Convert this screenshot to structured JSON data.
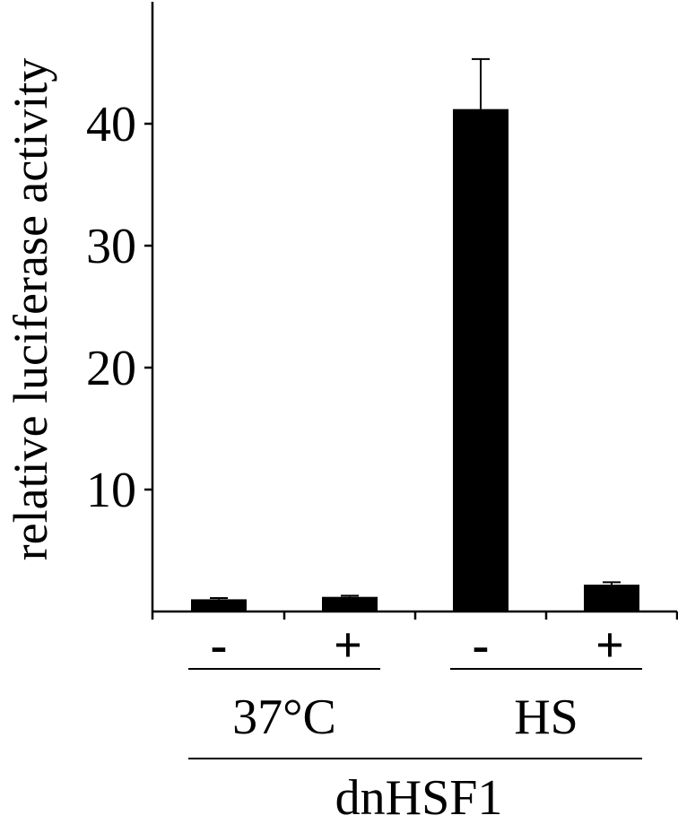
{
  "chart_data": {
    "type": "bar",
    "ylabel": "relative luciferase activity",
    "ylim": [
      0,
      50
    ],
    "yticks": [
      10,
      20,
      30,
      40
    ],
    "ytick_labels": [
      "10",
      "20",
      "30",
      "40"
    ],
    "categories": [
      "-",
      "+",
      "-",
      "+"
    ],
    "values": [
      1.0,
      1.2,
      41.2,
      2.2
    ],
    "errors": [
      0.1,
      0.1,
      4.1,
      0.2
    ],
    "groups": [
      {
        "label": "37°C",
        "categories": [
          0,
          1
        ]
      },
      {
        "label": "HS",
        "categories": [
          2,
          3
        ]
      }
    ],
    "super_group": {
      "label": "dnHSF1"
    },
    "bar_color": "#000000",
    "grid": false
  }
}
